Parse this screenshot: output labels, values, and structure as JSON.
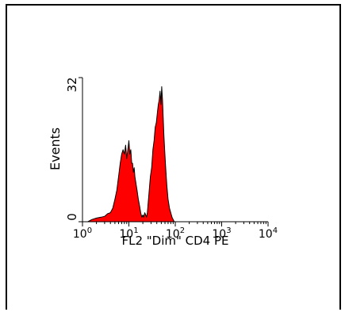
{
  "chart_data": {
    "type": "area",
    "title": "",
    "xlabel": "FL2 \"Dim\" CD4 PE",
    "ylabel": "Events",
    "x_scale": "log",
    "xlim": [
      1,
      10000
    ],
    "ylim": [
      0,
      32
    ],
    "x_ticks": [
      {
        "value": 1,
        "base": "10",
        "exp": "0"
      },
      {
        "value": 10,
        "base": "10",
        "exp": "1"
      },
      {
        "value": 100,
        "base": "10",
        "exp": "2"
      },
      {
        "value": 1000,
        "base": "10",
        "exp": "3"
      },
      {
        "value": 10000,
        "base": "10",
        "exp": "4"
      }
    ],
    "y_ticks": [
      "0",
      "32"
    ],
    "grid": false,
    "fill_color": "#ff0000",
    "outline_color": "#000000",
    "series": [
      {
        "x": [
          1.3,
          1.6,
          2.0,
          2.5,
          3.0,
          3.5,
          4.0,
          4.5,
          5.0,
          5.5,
          6.0,
          6.5,
          7.0,
          7.5,
          8.0,
          8.5,
          9.0,
          9.5,
          10.0,
          10.5,
          11.0,
          11.5,
          12.0,
          12.5,
          13.0,
          13.5,
          14.0,
          15.0,
          16.0,
          17.0,
          18.0,
          19.0,
          20.0,
          21.0,
          22.0,
          23.0,
          24.0,
          25.0,
          27.0,
          29.0,
          31.0,
          33.0,
          35.0,
          37.0,
          39.0,
          41.0,
          43.0,
          45.0,
          47.0,
          49.0,
          51.0,
          53.0,
          55.0,
          57.0,
          59.0,
          62.0,
          66.0,
          70.0,
          75.0,
          80.0,
          85.0,
          90.0,
          95.0
        ],
        "y": [
          0.0,
          0.5,
          0.8,
          1.0,
          1.2,
          1.8,
          2.0,
          3.0,
          5.0,
          7.0,
          10.0,
          13.0,
          15.0,
          16.0,
          15.0,
          17.0,
          14.0,
          16.0,
          18.0,
          15.0,
          16.0,
          13.0,
          13.0,
          11.0,
          12.0,
          10.0,
          9.0,
          7.0,
          5.0,
          3.5,
          2.0,
          1.0,
          1.5,
          1.0,
          2.0,
          1.5,
          1.0,
          2.0,
          6.0,
          10.0,
          12.0,
          16.0,
          18.0,
          21.0,
          22.0,
          24.0,
          26.0,
          27.0,
          29.0,
          26.0,
          30.0,
          27.0,
          23.0,
          19.0,
          16.0,
          12.0,
          8.0,
          5.0,
          3.0,
          2.0,
          1.0,
          0.5,
          0.0
        ]
      }
    ]
  }
}
